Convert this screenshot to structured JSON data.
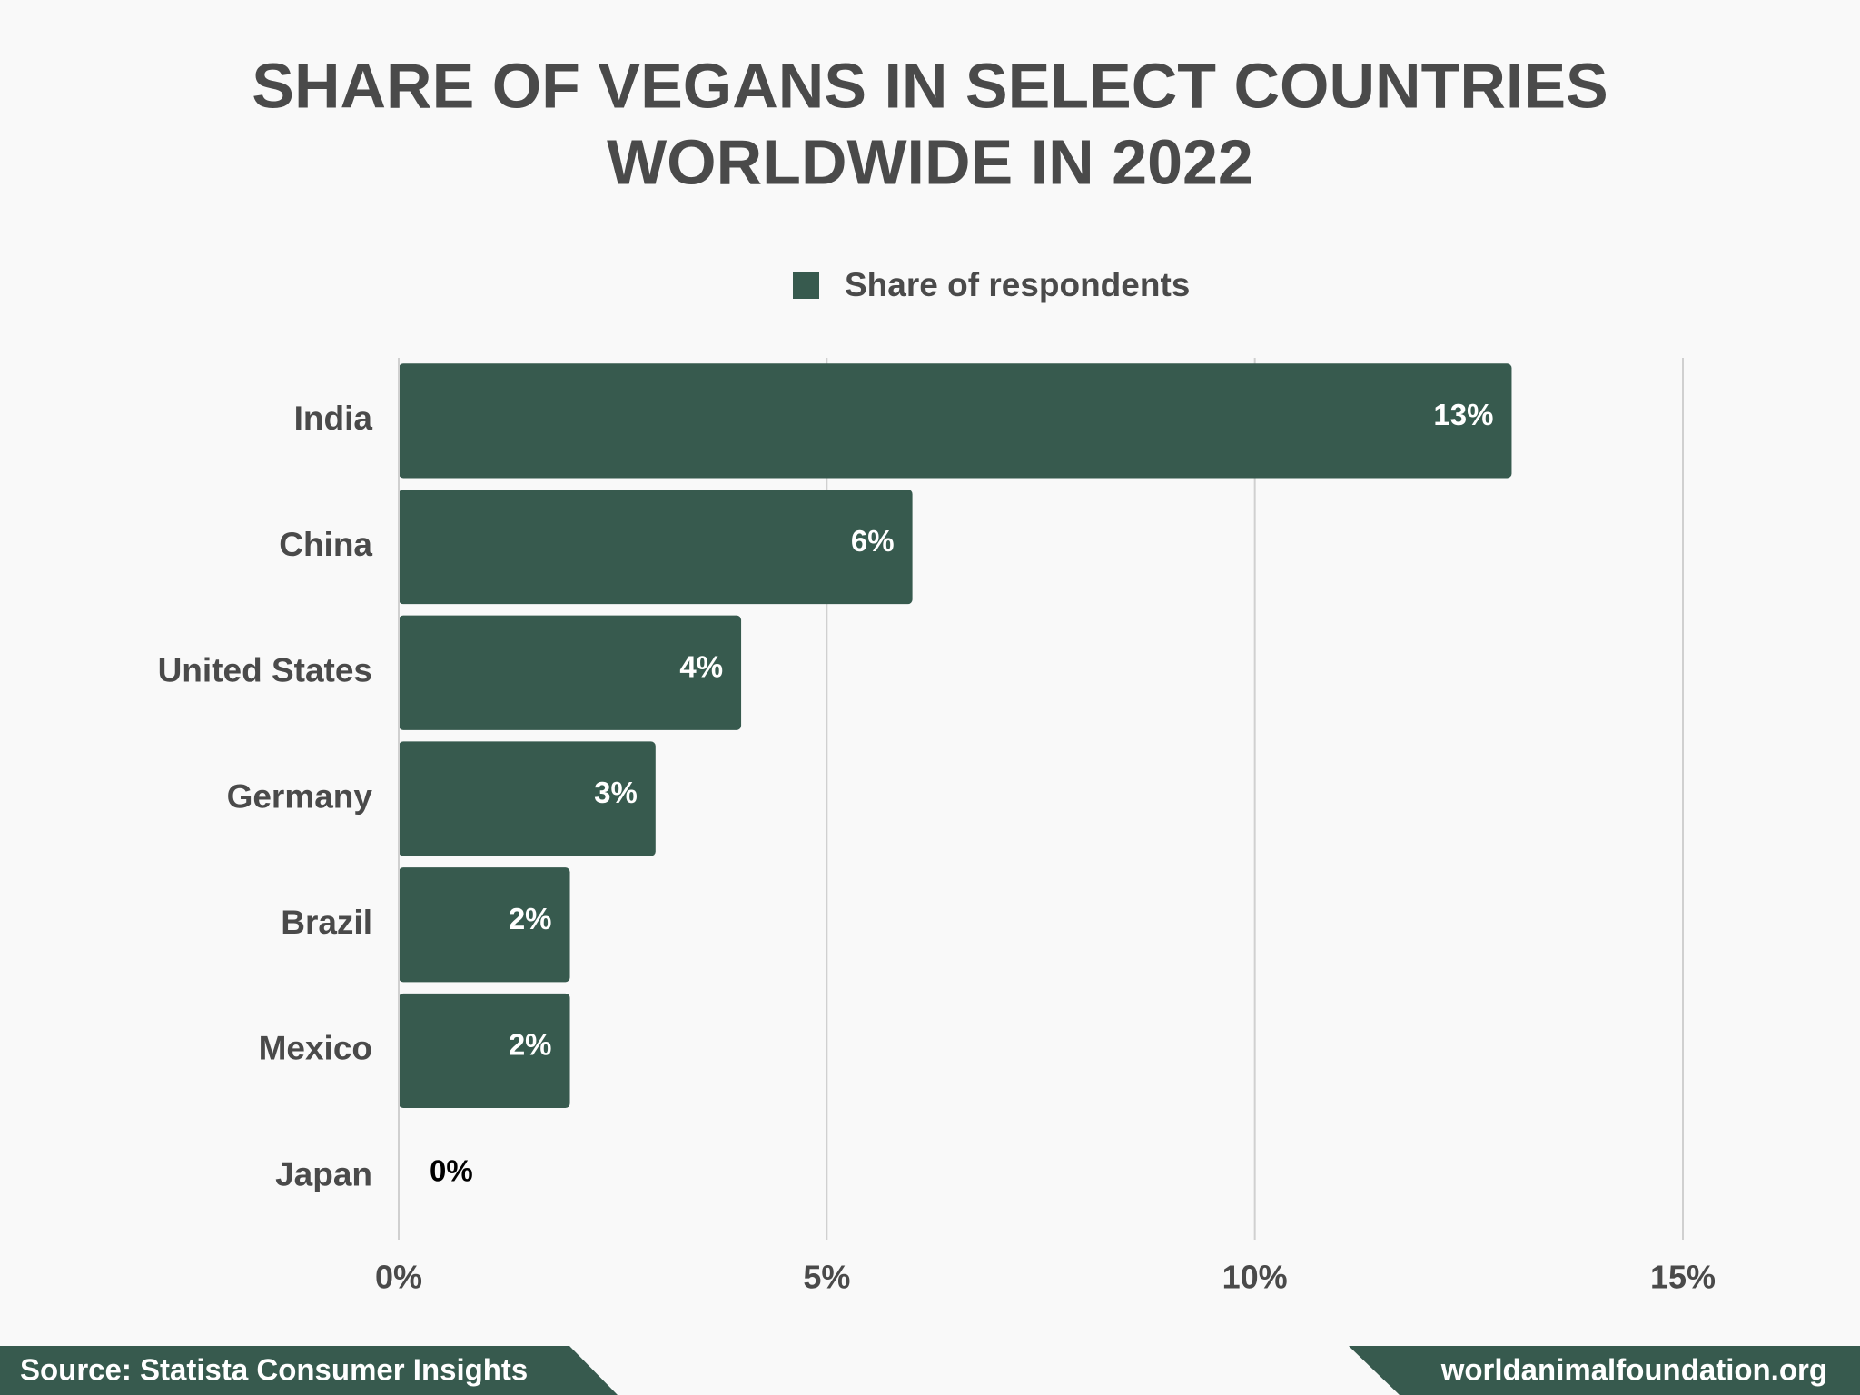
{
  "chart_data": {
    "type": "bar",
    "orientation": "horizontal",
    "title": [
      "SHARE OF VEGANS IN SELECT COUNTRIES",
      "WORLDWIDE IN 2022"
    ],
    "categories": [
      "India",
      "China",
      "United States",
      "Germany",
      "Brazil",
      "Mexico",
      "Japan"
    ],
    "series": [
      {
        "name": "Share of respondents",
        "color": "#375a4e",
        "values": [
          13,
          6,
          4,
          3,
          2,
          2,
          0
        ],
        "value_labels": [
          "13%",
          "6%",
          "4%",
          "3%",
          "2%",
          "2%",
          "0%"
        ]
      }
    ],
    "xlim": [
      0,
      15
    ],
    "xticks": [
      {
        "value": 0,
        "label": "0%"
      },
      {
        "value": 5,
        "label": "5%"
      },
      {
        "value": 10,
        "label": "10%"
      },
      {
        "value": 15,
        "label": "15%"
      }
    ],
    "grid": true,
    "legend": "top",
    "source": "Source: Statista Consumer Insights",
    "website": "worldanimalfoundation.org"
  }
}
